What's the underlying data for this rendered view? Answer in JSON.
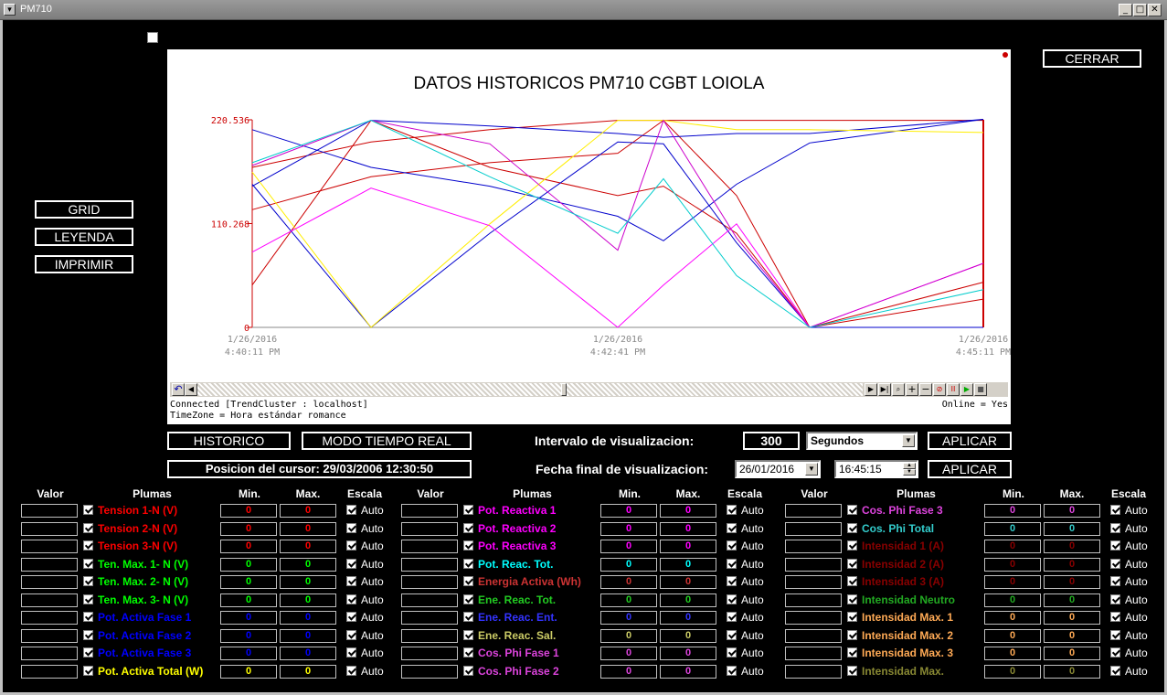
{
  "window": {
    "title": "PM710"
  },
  "buttons": {
    "cerrar": "CERRAR",
    "grid": "GRID",
    "leyenda": "LEYENDA",
    "imprimir": "IMPRIMIR",
    "historico": "HISTORICO",
    "tiempo_real": "MODO TIEMPO REAL",
    "aplicar1": "APLICAR",
    "aplicar2": "APLICAR"
  },
  "cursor_pos": "Posicion del cursor: 29/03/2006 12:30:50",
  "intervalo": {
    "label": "Intervalo de visualizacion:",
    "value": "300",
    "unit": "Segundos"
  },
  "fecha": {
    "label": "Fecha final de visualizacion:",
    "date": "26/01/2016",
    "time": "16:45:15"
  },
  "status": {
    "connected": "Connected [TrendCluster : localhost]",
    "timezone": "TimeZone = Hora estándar romance",
    "online": "Online = Yes"
  },
  "chart_data": {
    "type": "line",
    "title": "DATOS HISTORICOS PM710 CGBT LOIOLA",
    "y_ticks": [
      "220.536",
      "110.268",
      "0"
    ],
    "ylim": [
      0,
      220.536
    ],
    "x_ticks": [
      {
        "date": "1/26/2016",
        "time": "4:40:11 PM"
      },
      {
        "date": "1/26/2016",
        "time": "4:42:41 PM"
      },
      {
        "date": "1/26/2016",
        "time": "4:45:11 PM"
      }
    ],
    "x": [
      "4:40:11 PM",
      "4:40:48 PM",
      "4:41:26 PM",
      "4:42:03 PM",
      "4:42:41 PM",
      "4:43:18 PM",
      "4:44:33 PM",
      "4:45:11 PM"
    ],
    "series": [
      {
        "color": "#cc0000",
        "values": [
          170,
          197,
          210,
          220,
          220,
          220,
          220,
          220
        ]
      },
      {
        "color": "#cc0000",
        "values": [
          125,
          160,
          175,
          185,
          220,
          140,
          0,
          30
        ]
      },
      {
        "color": "#cc0000",
        "values": [
          45,
          220,
          170,
          140,
          150,
          100,
          0,
          48
        ]
      },
      {
        "color": "#0000cc",
        "values": [
          210,
          170,
          150,
          118,
          92,
          152,
          196,
          221
        ]
      },
      {
        "color": "#0000cc",
        "values": [
          150,
          220,
          214,
          206,
          202,
          206,
          206,
          221
        ]
      },
      {
        "color": "#0000cc",
        "values": [
          152,
          0,
          100,
          197,
          195,
          90,
          0,
          0
        ]
      },
      {
        "color": "#ffee00",
        "values": [
          165,
          0,
          110,
          220,
          220,
          210,
          210,
          207
        ]
      },
      {
        "color": "#ff00ff",
        "values": [
          80,
          148,
          108,
          0,
          45,
          110,
          0,
          68
        ]
      },
      {
        "color": "#cc00cc",
        "values": [
          172,
          220,
          195,
          82,
          220,
          95,
          0,
          68
        ]
      },
      {
        "color": "#00cccc",
        "values": [
          175,
          220,
          160,
          100,
          158,
          55,
          0,
          40
        ]
      }
    ]
  },
  "table_headers": {
    "valor": "Valor",
    "plumas": "Plumas",
    "min": "Min.",
    "max": "Max.",
    "escala": "Escala"
  },
  "columns": [
    [
      {
        "name": "Tension 1-N (V)",
        "color": "#ff0000",
        "min": "0",
        "max": "0",
        "auto": "Auto"
      },
      {
        "name": "Tension 2-N (V)",
        "color": "#ff0000",
        "min": "0",
        "max": "0",
        "auto": "Auto"
      },
      {
        "name": "Tension 3-N (V)",
        "color": "#ff0000",
        "min": "0",
        "max": "0",
        "auto": "Auto"
      },
      {
        "name": "Ten. Max. 1- N (V)",
        "color": "#00ff00",
        "min": "0",
        "max": "0",
        "auto": "Auto"
      },
      {
        "name": "Ten. Max. 2- N (V)",
        "color": "#00ff00",
        "min": "0",
        "max": "0",
        "auto": "Auto"
      },
      {
        "name": "Ten. Max. 3- N (V)",
        "color": "#00ff00",
        "min": "0",
        "max": "0",
        "auto": "Auto"
      },
      {
        "name": "Pot. Activa Fase 1",
        "color": "#0000ff",
        "min": "0",
        "max": "0",
        "auto": "Auto"
      },
      {
        "name": "Pot. Activa Fase 2",
        "color": "#0000ff",
        "min": "0",
        "max": "0",
        "auto": "Auto"
      },
      {
        "name": "Pot. Activa Fase 3",
        "color": "#0000ff",
        "min": "0",
        "max": "0",
        "auto": "Auto"
      },
      {
        "name": "Pot. Activa Total (W)",
        "color": "#ffff00",
        "min": "0",
        "max": "0",
        "auto": "Auto"
      }
    ],
    [
      {
        "name": "Pot. Reactiva 1",
        "color": "#ff00ff",
        "min": "0",
        "max": "0",
        "auto": "Auto"
      },
      {
        "name": "Pot. Reactiva 2",
        "color": "#ff00ff",
        "min": "0",
        "max": "0",
        "auto": "Auto"
      },
      {
        "name": "Pot. Reactiva 3",
        "color": "#ff00ff",
        "min": "0",
        "max": "0",
        "auto": "Auto"
      },
      {
        "name": "Pot. Reac. Tot.",
        "color": "#00ffff",
        "min": "0",
        "max": "0",
        "auto": "Auto"
      },
      {
        "name": "Energia Activa (Wh)",
        "color": "#cc3333",
        "min": "0",
        "max": "0",
        "auto": "Auto"
      },
      {
        "name": "Ene. Reac. Tot.",
        "color": "#22cc22",
        "min": "0",
        "max": "0",
        "auto": "Auto"
      },
      {
        "name": "Ene. Reac. Ent.",
        "color": "#3333ff",
        "min": "0",
        "max": "0",
        "auto": "Auto"
      },
      {
        "name": "Ene. Reac. Sal.",
        "color": "#cccc66",
        "min": "0",
        "max": "0",
        "auto": "Auto"
      },
      {
        "name": "Cos. Phi Fase 1",
        "color": "#dd44dd",
        "min": "0",
        "max": "0",
        "auto": "Auto"
      },
      {
        "name": "Cos. Phi Fase 2",
        "color": "#dd44dd",
        "min": "0",
        "max": "0",
        "auto": "Auto"
      }
    ],
    [
      {
        "name": "Cos. Phi Fase 3",
        "color": "#dd44dd",
        "min": "0",
        "max": "0",
        "auto": "Auto"
      },
      {
        "name": "Cos. Phi Total",
        "color": "#33cccc",
        "min": "0",
        "max": "0",
        "auto": "Auto"
      },
      {
        "name": "Intensidad 1 (A)",
        "color": "#880000",
        "min": "0",
        "max": "0",
        "auto": "Auto"
      },
      {
        "name": "Intensidad 2 (A)",
        "color": "#880000",
        "min": "0",
        "max": "0",
        "auto": "Auto"
      },
      {
        "name": "Intensidad 3 (A)",
        "color": "#880000",
        "min": "0",
        "max": "0",
        "auto": "Auto"
      },
      {
        "name": "Intensidad Neutro",
        "color": "#22aa22",
        "min": "0",
        "max": "0",
        "auto": "Auto"
      },
      {
        "name": "Intensidad Max. 1",
        "color": "#ffaa55",
        "min": "0",
        "max": "0",
        "auto": "Auto"
      },
      {
        "name": "Intensidad Max. 2",
        "color": "#ffaa55",
        "min": "0",
        "max": "0",
        "auto": "Auto"
      },
      {
        "name": "Intensidad Max. 3",
        "color": "#ffaa55",
        "min": "0",
        "max": "0",
        "auto": "Auto"
      },
      {
        "name": "Intensidad Max.",
        "color": "#888833",
        "min": "0",
        "max": "0",
        "auto": "Auto"
      }
    ]
  ]
}
